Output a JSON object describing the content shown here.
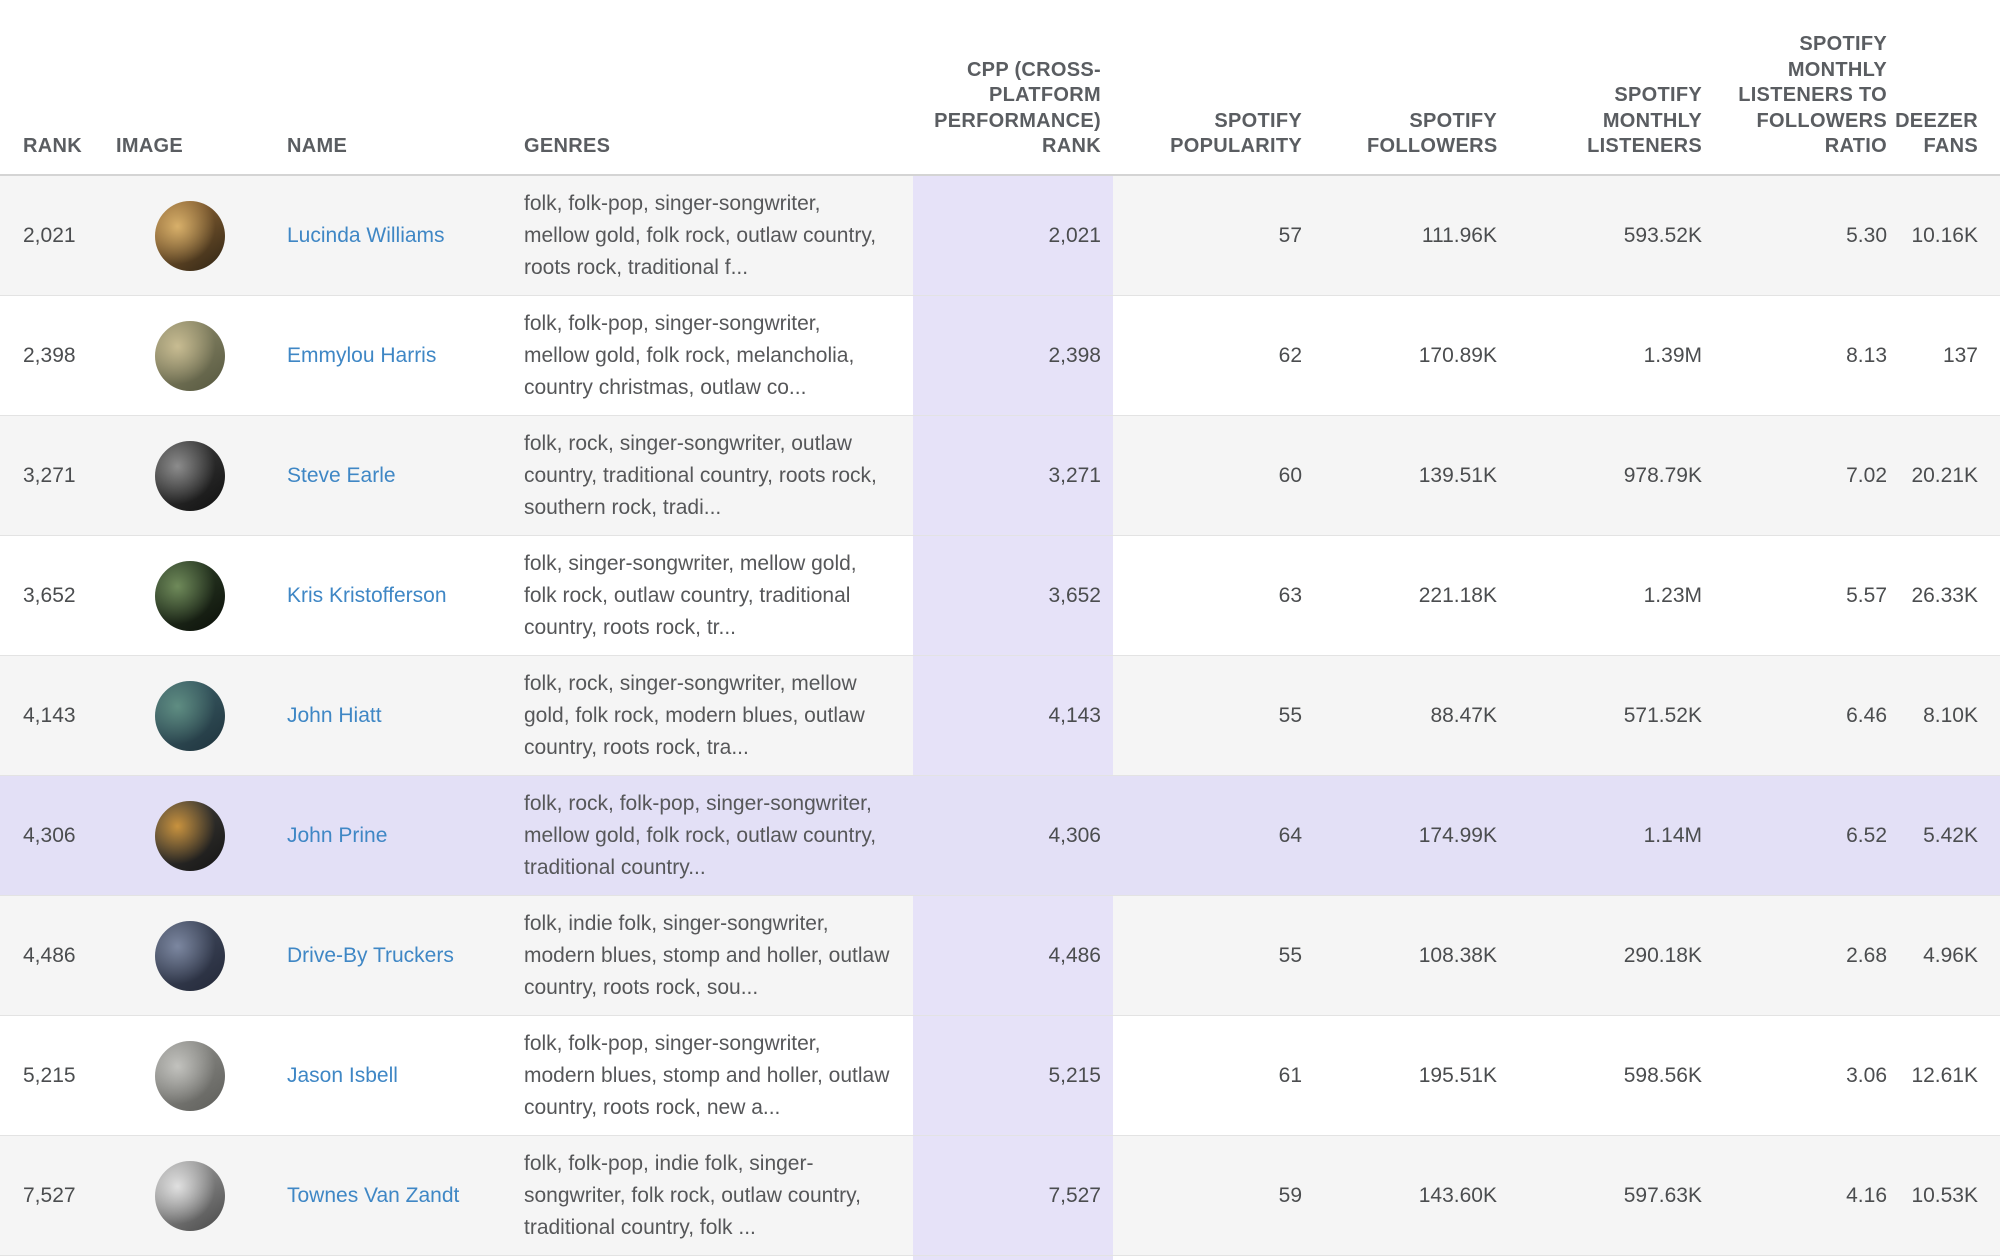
{
  "colors": {
    "link_blue": "#3f87c5",
    "row_alt_gray": "#f5f5f5",
    "row_white": "#ffffff",
    "highlight_lavender": "#e3e0f6",
    "cpp_column_lavender": "#e6e2f8",
    "header_text": "#5a5d61",
    "body_text": "#4b4d4f",
    "divider": "#e3e3e3"
  },
  "table": {
    "columns": [
      {
        "id": "rank",
        "label": "RANK",
        "align": "left"
      },
      {
        "id": "image",
        "label": "IMAGE",
        "align": "left"
      },
      {
        "id": "name",
        "label": "NAME",
        "align": "left"
      },
      {
        "id": "genres",
        "label": "GENRES",
        "align": "left"
      },
      {
        "id": "cpp_rank",
        "label": "CPP (CROSS-PLATFORM PERFORMANCE) RANK",
        "align": "right"
      },
      {
        "id": "spotify_popularity",
        "label": "SPOTIFY POPULARITY",
        "align": "right"
      },
      {
        "id": "spotify_followers",
        "label": "SPOTIFY FOLLOWERS",
        "align": "right"
      },
      {
        "id": "spotify_monthly_listeners",
        "label": "SPOTIFY MONTHLY LISTENERS",
        "align": "right"
      },
      {
        "id": "listeners_to_followers_ratio",
        "label": "SPOTIFY MONTHLY LISTENERS TO FOLLOWERS RATIO",
        "align": "right"
      },
      {
        "id": "deezer_fans",
        "label": "DEEZER FANS",
        "align": "right"
      }
    ],
    "rows": [
      {
        "rank": "2,021",
        "name": "Lucinda Williams",
        "genres": "folk, folk-pop, singer-songwriter, mellow gold, folk rock, outlaw country, roots rock, traditional f...",
        "cpp_rank": "2,021",
        "spotify_popularity": "57",
        "spotify_followers": "111.96K",
        "spotify_monthly_listeners": "593.52K",
        "listeners_to_followers_ratio": "5.30",
        "deezer_fans": "10.16K",
        "highlighted": false,
        "avatar": {
          "name": "lucinda-williams-photo",
          "colors": [
            "#d8b06a",
            "#8a6334",
            "#2f2414"
          ]
        }
      },
      {
        "rank": "2,398",
        "name": "Emmylou Harris",
        "genres": "folk, folk-pop, singer-songwriter, mellow gold, folk rock, melancholia, country christmas, outlaw co...",
        "cpp_rank": "2,398",
        "spotify_popularity": "62",
        "spotify_followers": "170.89K",
        "spotify_monthly_listeners": "1.39M",
        "listeners_to_followers_ratio": "8.13",
        "deezer_fans": "137",
        "highlighted": false,
        "avatar": {
          "name": "emmylou-harris-photo",
          "colors": [
            "#c8bc92",
            "#8a8767",
            "#55573f"
          ]
        }
      },
      {
        "rank": "3,271",
        "name": "Steve Earle",
        "genres": "folk, rock, singer-songwriter, outlaw country, traditional country, roots rock, southern rock, tradi...",
        "cpp_rank": "3,271",
        "spotify_popularity": "60",
        "spotify_followers": "139.51K",
        "spotify_monthly_listeners": "978.79K",
        "listeners_to_followers_ratio": "7.02",
        "deezer_fans": "20.21K",
        "highlighted": false,
        "avatar": {
          "name": "steve-earle-photo",
          "colors": [
            "#8c8c8c",
            "#3a3a3a",
            "#101010"
          ]
        }
      },
      {
        "rank": "3,652",
        "name": "Kris Kristofferson",
        "genres": "folk, singer-songwriter, mellow gold, folk rock, outlaw country, traditional country, roots rock, tr...",
        "cpp_rank": "3,652",
        "spotify_popularity": "63",
        "spotify_followers": "221.18K",
        "spotify_monthly_listeners": "1.23M",
        "listeners_to_followers_ratio": "5.57",
        "deezer_fans": "26.33K",
        "highlighted": false,
        "avatar": {
          "name": "kris-kristofferson-photo",
          "colors": [
            "#6f8a5a",
            "#2c3d26",
            "#0b0f09"
          ]
        }
      },
      {
        "rank": "4,143",
        "name": "John Hiatt",
        "genres": "folk, rock, singer-songwriter, mellow gold, folk rock, modern blues, outlaw country, roots rock, tra...",
        "cpp_rank": "4,143",
        "spotify_popularity": "55",
        "spotify_followers": "88.47K",
        "spotify_monthly_listeners": "571.52K",
        "listeners_to_followers_ratio": "6.46",
        "deezer_fans": "8.10K",
        "highlighted": false,
        "avatar": {
          "name": "john-hiatt-photo",
          "colors": [
            "#5f8d82",
            "#3a5c64",
            "#1f333d"
          ]
        }
      },
      {
        "rank": "4,306",
        "name": "John Prine",
        "genres": "folk, rock, folk-pop, singer-songwriter, mellow gold, folk rock, outlaw country, traditional country...",
        "cpp_rank": "4,306",
        "spotify_popularity": "64",
        "spotify_followers": "174.99K",
        "spotify_monthly_listeners": "1.14M",
        "listeners_to_followers_ratio": "6.52",
        "deezer_fans": "5.42K",
        "highlighted": true,
        "avatar": {
          "name": "john-prine-photo",
          "colors": [
            "#c8923e",
            "#3c3a36",
            "#141414"
          ]
        }
      },
      {
        "rank": "4,486",
        "name": "Drive-By Truckers",
        "genres": "folk, indie folk, singer-songwriter, modern blues, stomp and holler, outlaw country, roots rock, sou...",
        "cpp_rank": "4,486",
        "spotify_popularity": "55",
        "spotify_followers": "108.38K",
        "spotify_monthly_listeners": "290.18K",
        "listeners_to_followers_ratio": "2.68",
        "deezer_fans": "4.96K",
        "highlighted": false,
        "avatar": {
          "name": "drive-by-truckers-photo",
          "colors": [
            "#7c87a0",
            "#414a5e",
            "#232838"
          ]
        }
      },
      {
        "rank": "5,215",
        "name": "Jason Isbell",
        "genres": "folk, folk-pop, singer-songwriter, modern blues, stomp and holler, outlaw country, roots rock, new a...",
        "cpp_rank": "5,215",
        "spotify_popularity": "61",
        "spotify_followers": "195.51K",
        "spotify_monthly_listeners": "598.56K",
        "listeners_to_followers_ratio": "3.06",
        "deezer_fans": "12.61K",
        "highlighted": false,
        "avatar": {
          "name": "jason-isbell-photo",
          "colors": [
            "#c2c2be",
            "#8b8b87",
            "#5e5e5a"
          ]
        }
      },
      {
        "rank": "7,527",
        "name": "Townes Van Zandt",
        "genres": "folk, folk-pop, indie folk, singer-songwriter, folk rock, outlaw country, traditional country, folk ...",
        "cpp_rank": "7,527",
        "spotify_popularity": "59",
        "spotify_followers": "143.60K",
        "spotify_monthly_listeners": "597.63K",
        "listeners_to_followers_ratio": "4.16",
        "deezer_fans": "10.53K",
        "highlighted": false,
        "avatar": {
          "name": "townes-van-zandt-photo",
          "colors": [
            "#e0e0e0",
            "#9a9a9a",
            "#484848"
          ]
        }
      }
    ]
  }
}
